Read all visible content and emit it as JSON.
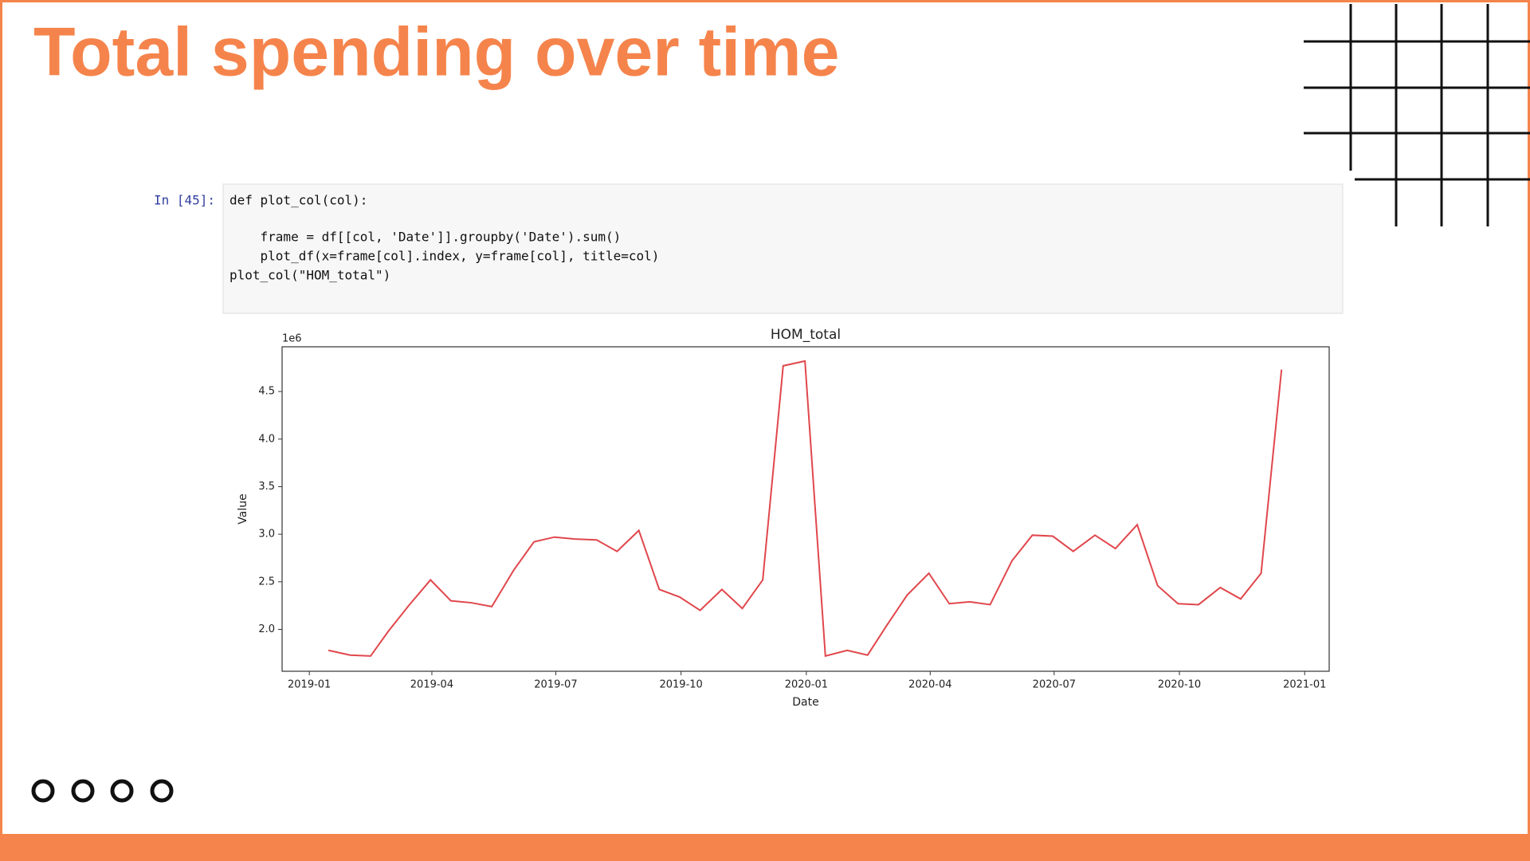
{
  "title": "Total spending over time",
  "code": {
    "prompt": "In [45]:",
    "lines": [
      "def plot_col(col):",
      "    frame = df[[col, 'Date']].groupby('Date').sum()",
      "    plot_df(x=frame[col].index, y=frame[col], title=col)",
      "plot_col(\"HOM_total\")"
    ]
  },
  "chart_data": {
    "type": "line",
    "title": "HOM_total",
    "xlabel": "Date",
    "ylabel": "Value",
    "y_offset": "1e6",
    "x": [
      "2019-01-15",
      "2019-01-31",
      "2019-02-15",
      "2019-02-28",
      "2019-03-15",
      "2019-03-31",
      "2019-04-15",
      "2019-04-30",
      "2019-05-15",
      "2019-05-31",
      "2019-06-15",
      "2019-06-30",
      "2019-07-15",
      "2019-07-31",
      "2019-08-15",
      "2019-08-31",
      "2019-09-15",
      "2019-09-30",
      "2019-10-15",
      "2019-10-31",
      "2019-11-15",
      "2019-11-30",
      "2019-12-15",
      "2019-12-31",
      "2020-01-15",
      "2020-01-31",
      "2020-02-15",
      "2020-02-29",
      "2020-03-15",
      "2020-03-31",
      "2020-04-15",
      "2020-04-30",
      "2020-05-15",
      "2020-05-31",
      "2020-06-15",
      "2020-06-30",
      "2020-07-15",
      "2020-07-31",
      "2020-08-15",
      "2020-08-31",
      "2020-09-15",
      "2020-09-30",
      "2020-10-15",
      "2020-10-31",
      "2020-11-15",
      "2020-11-30",
      "2020-12-15"
    ],
    "series": [
      {
        "name": "HOM_total",
        "color": "#e0474c",
        "values": [
          1.78,
          1.73,
          1.72,
          1.98,
          2.25,
          2.52,
          2.3,
          2.28,
          2.24,
          2.62,
          2.92,
          2.97,
          2.95,
          2.94,
          2.82,
          3.04,
          2.42,
          2.34,
          2.2,
          2.42,
          2.22,
          2.52,
          4.77,
          4.82,
          1.72,
          1.78,
          1.73,
          2.04,
          2.36,
          2.59,
          2.27,
          2.29,
          2.26,
          2.72,
          2.99,
          2.98,
          2.82,
          2.99,
          2.85,
          3.1,
          2.46,
          2.27,
          2.26,
          2.44,
          2.32,
          2.59,
          4.73
        ]
      }
    ],
    "xlim": [
      "2018-12-12",
      "2021-01-19"
    ],
    "xticks": [
      "2019-01",
      "2019-04",
      "2019-07",
      "2019-10",
      "2020-01",
      "2020-04",
      "2020-07",
      "2020-10",
      "2021-01"
    ],
    "ylim": [
      1.56,
      4.97
    ],
    "yticks": [
      {
        "value": 2,
        "label": "2.0"
      },
      2.5,
      {
        "value": 3,
        "label": "3.0"
      },
      3.5,
      {
        "value": 4,
        "label": "4.0"
      },
      4.5
    ],
    "grid": false
  }
}
